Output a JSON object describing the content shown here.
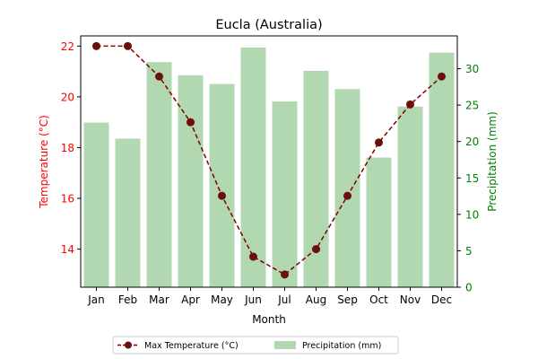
{
  "chart_data": {
    "type": "bar+line",
    "title": "Eucla (Australia)",
    "xlabel": "Month",
    "ylabel_left": "Temperature (°C)",
    "ylabel_right": "Precipitation (mm)",
    "categories": [
      "Jan",
      "Feb",
      "Mar",
      "Apr",
      "May",
      "Jun",
      "Jul",
      "Aug",
      "Sep",
      "Oct",
      "Nov",
      "Dec"
    ],
    "series": [
      {
        "name": "Max Temperature (°C)",
        "kind": "line",
        "axis": "left",
        "color": "#800000",
        "values": [
          22.0,
          22.0,
          20.8,
          19.0,
          16.1,
          13.7,
          13.0,
          14.0,
          16.1,
          18.2,
          19.7,
          20.8
        ]
      },
      {
        "name": "Precipitation (mm)",
        "kind": "bar",
        "axis": "right",
        "color": "#b2d8b2",
        "values": [
          22.6,
          20.4,
          30.9,
          29.1,
          27.9,
          32.9,
          25.5,
          29.7,
          27.2,
          17.8,
          24.8,
          32.2
        ]
      }
    ],
    "ylim_left": [
      12.5,
      22.4
    ],
    "ylim_right": [
      0,
      34.5
    ],
    "yticks_left": [
      14,
      16,
      18,
      20,
      22
    ],
    "yticks_right": [
      0,
      5,
      10,
      15,
      20,
      25,
      30
    ],
    "left_axis_color": "#ff0000",
    "right_axis_color": "#008000",
    "grid": false,
    "legend_position": "bottom-center"
  }
}
